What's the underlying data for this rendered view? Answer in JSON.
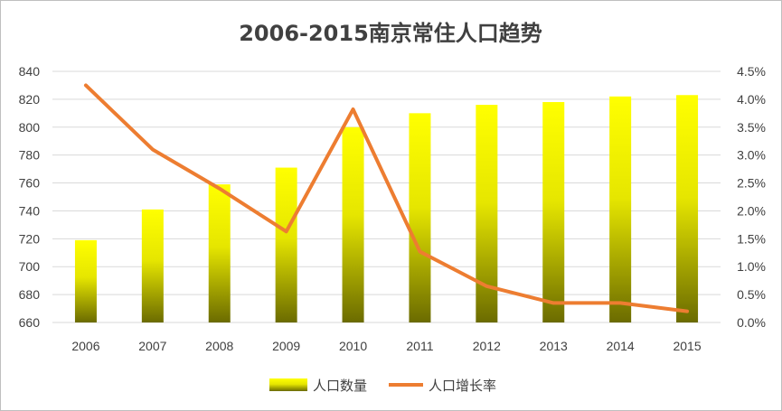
{
  "chart_data": {
    "type": "bar",
    "title": "2006-2015南京常住人口趋势",
    "categories": [
      "2006",
      "2007",
      "2008",
      "2009",
      "2010",
      "2011",
      "2012",
      "2013",
      "2014",
      "2015"
    ],
    "series": [
      {
        "name": "人口数量",
        "type": "bar",
        "axis": "left",
        "values": [
          719,
          741,
          759,
          771,
          800,
          810,
          816,
          818,
          822,
          823
        ]
      },
      {
        "name": "人口增长率",
        "type": "line",
        "axis": "right",
        "values": [
          4.25,
          3.1,
          2.4,
          1.63,
          3.82,
          1.27,
          0.65,
          0.35,
          0.35,
          0.2
        ]
      }
    ],
    "y_left": {
      "min": 660,
      "max": 840,
      "step": 20,
      "ticks": [
        "660",
        "680",
        "700",
        "720",
        "740",
        "760",
        "780",
        "800",
        "820",
        "840"
      ]
    },
    "y_right": {
      "min": 0,
      "max": 4.5,
      "step": 0.5,
      "ticks": [
        "0.0%",
        "0.5%",
        "1.0%",
        "1.5%",
        "2.0%",
        "2.5%",
        "3.0%",
        "3.5%",
        "4.0%",
        "4.5%"
      ]
    },
    "grid": true,
    "legend_position": "bottom",
    "colors": {
      "bar_top": "#ffff00",
      "bar_bottom": "#6b6b00",
      "line": "#ed7d31",
      "grid": "#d9d9d9",
      "text": "#404040"
    }
  }
}
